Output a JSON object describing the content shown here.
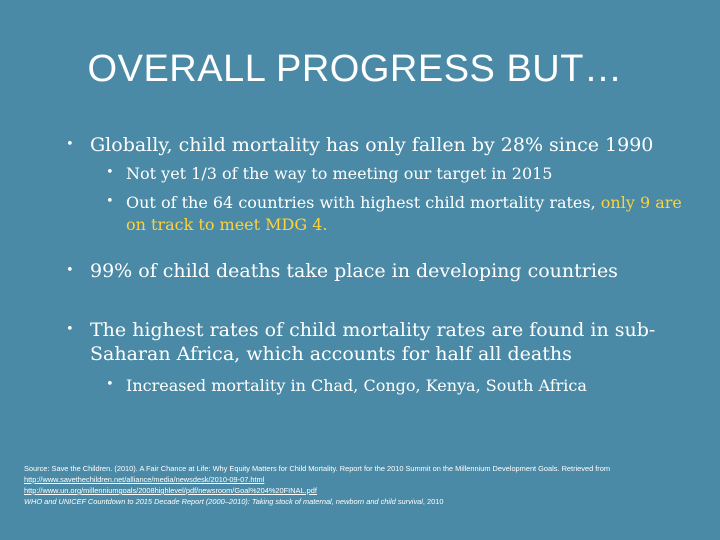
{
  "title": "OVERALL PROGRESS BUT…",
  "bullets": [
    {
      "text": "Globally, child mortality has only fallen by 28% since 1990",
      "sub": [
        {
          "text": "Not yet 1/3 of the way to meeting our target in 2015"
        },
        {
          "text": "Out of the 64 countries with highest child mortality rates, ",
          "highlight": "only 9 are on track to meet MDG 4."
        }
      ]
    },
    {
      "text": "99% of child deaths take place in developing countries",
      "sub": []
    },
    {
      "text": "The highest rates of child mortality rates are found in sub-Saharan Africa, which accounts for half all deaths",
      "sub": [
        {
          "text": "Increased mortality in Chad, Congo, Kenya, South Africa"
        }
      ]
    }
  ],
  "bullet_char": "•",
  "source": {
    "line1": "Source: Save the Children. (2010). A Fair Chance at Life: Why Equity Matters for Child Mortality. Report for the 2010 Summit on the Millennium Development Goals. Retrieved from",
    "link1": "http://www.savethechildren.net/alliance/media/newsdesk/2010-09-07.html",
    "link2": "http://www.un.org/millenniumgoals/2008highlevel/pdf/newsroom/Goal%204%20FINAL.pdf",
    "line3_italic": "WHO and UNICEF Countdown to 2015 Decade Report (2000–2010): Taking stock of maternal, newborn and child survival",
    "line3_rest": ", 2010"
  },
  "colors": {
    "background": "#4a8aa6",
    "text": "#ffffff",
    "highlight": "#ffd23a"
  }
}
